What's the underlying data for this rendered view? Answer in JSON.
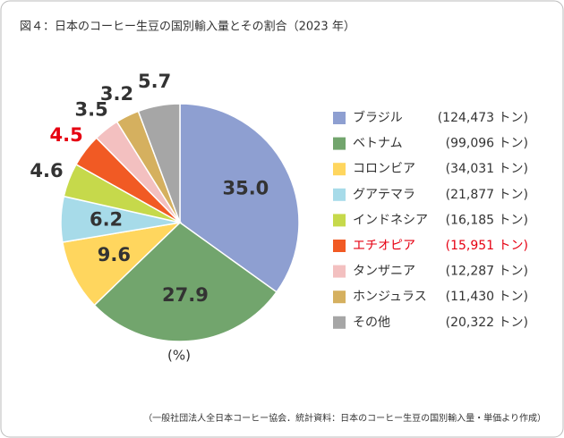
{
  "chart_data": {
    "type": "pie",
    "title": "図４：日本のコーヒー生豆の国別輸入量とその割合（2023 年）",
    "unit_label": "(%)",
    "source": "（一般社団法人全日本コーヒー協会．統計資料：日本のコーヒー生豆の国別輸入量・単価より作成）",
    "categories": [
      "ブラジル",
      "ベトナム",
      "コロンビア",
      "グアテマラ",
      "インドネシア",
      "エチオピア",
      "タンザニア",
      "ホンジュラス",
      "その他"
    ],
    "values": [
      35.0,
      27.9,
      9.6,
      6.2,
      4.6,
      4.5,
      3.5,
      3.2,
      5.7
    ],
    "value_labels": [
      "35.0",
      "27.9",
      "9.6",
      "6.2",
      "4.6",
      "4.5",
      "3.5",
      "3.2",
      "5.7"
    ],
    "legend_labels": [
      "(124,473 トン)",
      "(99,096 トン)",
      "(34,031 トン)",
      "(21,877 トン)",
      "(16,185 トン)",
      "(15,951 トン)",
      "(12,287 トン)",
      "(11,430 トン)",
      "(20,322 トン)"
    ],
    "colors": [
      "#8e9fd1",
      "#72a56d",
      "#ffd65e",
      "#a7dbe9",
      "#c6d94b",
      "#f15a24",
      "#f3c0c0",
      "#d5b05f",
      "#a6a6a6"
    ],
    "label_colors": [
      "#333333",
      "#333333",
      "#333333",
      "#333333",
      "#333333",
      "#e60012",
      "#333333",
      "#333333",
      "#333333"
    ]
  }
}
